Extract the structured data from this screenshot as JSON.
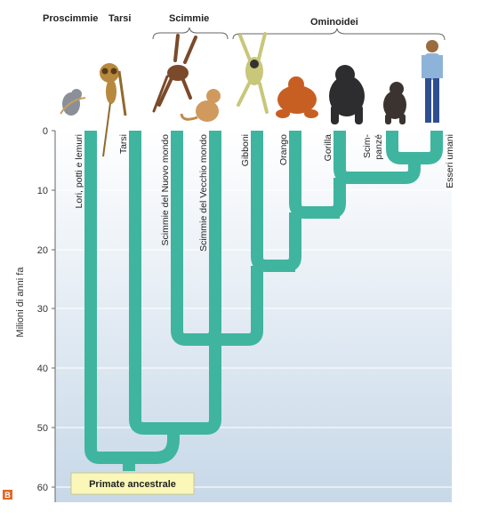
{
  "groups": {
    "proscimmie": "Proscimmie",
    "tarsi": "Tarsi",
    "scimmie": "Scimmie",
    "ominoidei": "Ominoidei"
  },
  "taxa": {
    "lori": "Lori, potti e lemuri",
    "tarsi": "Tarsi",
    "nuovo_mondo": "Scimmie del Nuovo mondo",
    "vecchio_mondo": "Scimmie del Vecchio mondo",
    "gibboni": "Gibboni",
    "orango": "Orango",
    "gorilla": "Gorilla",
    "scimpanze_1": "Scim-",
    "scimpanze_2": "panzé",
    "umani": "Esseri umani"
  },
  "axis": {
    "title": "Milioni di anni fa",
    "ticks": [
      "0",
      "10",
      "20",
      "30",
      "40",
      "50",
      "60"
    ]
  },
  "root_label": "Primate ancestrale",
  "corner_badge": "B",
  "colors": {
    "branch": "#3fb5a0",
    "background_top": "#ffffff",
    "background_bottom": "#c9d9e8",
    "root_box": "#fbf7b8"
  }
}
